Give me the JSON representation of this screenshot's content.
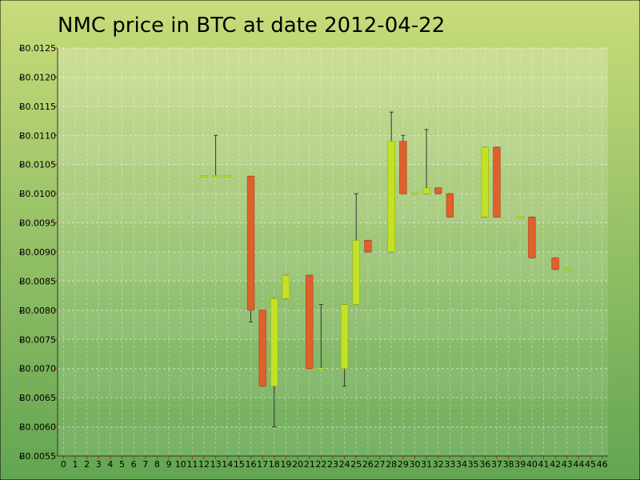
{
  "chart_data": {
    "type": "candlestick",
    "title": "NMC price in BTC at date 2012-04-22",
    "ylim": [
      0.0055,
      0.0125
    ],
    "y_ticks": [
      "Ƀ0.0055",
      "Ƀ0.0060",
      "Ƀ0.0065",
      "Ƀ0.0070",
      "Ƀ0.0075",
      "Ƀ0.0080",
      "Ƀ0.0085",
      "Ƀ0.0090",
      "Ƀ0.0095",
      "Ƀ0.0100",
      "Ƀ0.0105",
      "Ƀ0.0110",
      "Ƀ0.0115",
      "Ƀ0.0120",
      "Ƀ0.0125"
    ],
    "x_ticks": [
      "0",
      "1",
      "2",
      "3",
      "4",
      "5",
      "6",
      "7",
      "8",
      "9",
      "10",
      "11",
      "12",
      "13",
      "14",
      "15",
      "16",
      "17",
      "18",
      "19",
      "20",
      "21",
      "22",
      "23",
      "24",
      "25",
      "26",
      "27",
      "28",
      "29",
      "30",
      "31",
      "32",
      "33",
      "34",
      "35",
      "36",
      "37",
      "38",
      "39",
      "40",
      "41",
      "42",
      "43",
      "44",
      "45",
      "46"
    ],
    "grid": true,
    "colors": {
      "up": "#c4e225",
      "down": "#e0602b",
      "wick": "#333333",
      "bg_top": "#c9dc7a",
      "bg_bottom": "#6aaa55"
    },
    "candles": [
      {
        "x": 12,
        "open": 0.0103,
        "close": 0.0103,
        "high": 0.0103,
        "low": 0.0103
      },
      {
        "x": 13,
        "open": 0.0103,
        "close": 0.0103,
        "high": 0.011,
        "low": 0.0103
      },
      {
        "x": 14,
        "open": 0.0103,
        "close": 0.0103,
        "high": 0.0103,
        "low": 0.0103
      },
      {
        "x": 16,
        "open": 0.0103,
        "close": 0.008,
        "high": 0.0103,
        "low": 0.0078
      },
      {
        "x": 17,
        "open": 0.008,
        "close": 0.0067,
        "high": 0.008,
        "low": 0.0067
      },
      {
        "x": 18,
        "open": 0.0067,
        "close": 0.0082,
        "high": 0.0082,
        "low": 0.006
      },
      {
        "x": 19,
        "open": 0.0082,
        "close": 0.0086,
        "high": 0.0086,
        "low": 0.0082
      },
      {
        "x": 21,
        "open": 0.0086,
        "close": 0.007,
        "high": 0.0086,
        "low": 0.007
      },
      {
        "x": 22,
        "open": 0.007,
        "close": 0.007,
        "high": 0.0081,
        "low": 0.007
      },
      {
        "x": 24,
        "open": 0.007,
        "close": 0.0081,
        "high": 0.0081,
        "low": 0.0067
      },
      {
        "x": 25,
        "open": 0.0081,
        "close": 0.0092,
        "high": 0.01,
        "low": 0.0081
      },
      {
        "x": 26,
        "open": 0.0092,
        "close": 0.009,
        "high": 0.0092,
        "low": 0.009
      },
      {
        "x": 28,
        "open": 0.009,
        "close": 0.0109,
        "high": 0.0114,
        "low": 0.009
      },
      {
        "x": 29,
        "open": 0.0109,
        "close": 0.01,
        "high": 0.011,
        "low": 0.01
      },
      {
        "x": 30,
        "open": 0.01,
        "close": 0.01,
        "high": 0.01,
        "low": 0.01
      },
      {
        "x": 31,
        "open": 0.01,
        "close": 0.0101,
        "high": 0.0111,
        "low": 0.01
      },
      {
        "x": 32,
        "open": 0.0101,
        "close": 0.01,
        "high": 0.0101,
        "low": 0.01
      },
      {
        "x": 33,
        "open": 0.01,
        "close": 0.0096,
        "high": 0.01,
        "low": 0.0096
      },
      {
        "x": 36,
        "open": 0.0096,
        "close": 0.0108,
        "high": 0.0108,
        "low": 0.0096
      },
      {
        "x": 37,
        "open": 0.0108,
        "close": 0.0096,
        "high": 0.0108,
        "low": 0.0096
      },
      {
        "x": 39,
        "open": 0.0096,
        "close": 0.0096,
        "high": 0.0096,
        "low": 0.0096
      },
      {
        "x": 40,
        "open": 0.0096,
        "close": 0.0089,
        "high": 0.0096,
        "low": 0.0089
      },
      {
        "x": 42,
        "open": 0.0089,
        "close": 0.0087,
        "high": 0.0089,
        "low": 0.0087
      },
      {
        "x": 43,
        "open": 0.0087,
        "close": 0.0087,
        "high": 0.0087,
        "low": 0.0087
      }
    ]
  }
}
